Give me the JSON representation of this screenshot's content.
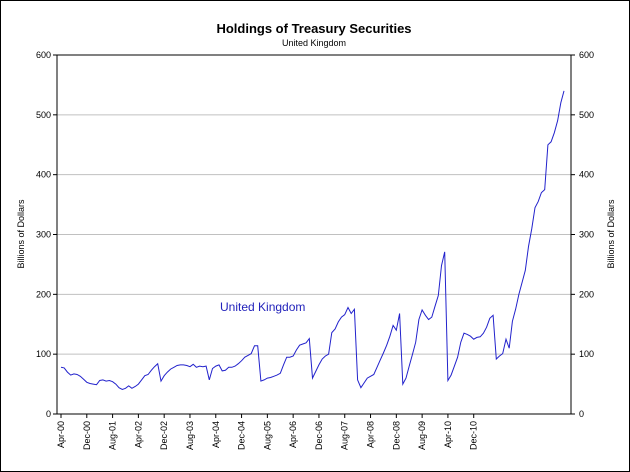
{
  "chart_data": {
    "type": "line",
    "title": "Holdings of Treasury Securities",
    "subtitle": "United Kingdom",
    "ylabel_left": "Billions of Dollars",
    "ylabel_right": "Billions of Dollars",
    "ylim": [
      0,
      600
    ],
    "yticks": [
      0,
      100,
      200,
      300,
      400,
      500,
      600
    ],
    "grid": true,
    "x_tick_labels": [
      "Apr-00",
      "Dec-00",
      "Aug-01",
      "Apr-02",
      "Dec-02",
      "Aug-03",
      "Apr-04",
      "Dec-04",
      "Aug-05",
      "Apr-06",
      "Dec-06",
      "Aug-07",
      "Apr-08",
      "Dec-08",
      "Aug-09",
      "Apr-10",
      "Dec-10"
    ],
    "series": [
      {
        "name": "United Kingdom",
        "color": "#2222cc",
        "start": "2000-04",
        "values": [
          78,
          77,
          70,
          65,
          67,
          66,
          63,
          58,
          53,
          51,
          50,
          49,
          56,
          57,
          55,
          56,
          54,
          50,
          44,
          41,
          43,
          47,
          43,
          46,
          50,
          57,
          64,
          66,
          73,
          79,
          84,
          55,
          64,
          70,
          75,
          78,
          81,
          82,
          82,
          81,
          79,
          83,
          78,
          80,
          79,
          80,
          57,
          76,
          80,
          82,
          72,
          73,
          78,
          78,
          80,
          84,
          89,
          95,
          98,
          101,
          114,
          114,
          55,
          57,
          60,
          61,
          63,
          65,
          68,
          82,
          95,
          95,
          97,
          107,
          115,
          117,
          119,
          126,
          60,
          71,
          82,
          92,
          97,
          100,
          136,
          142,
          154,
          162,
          166,
          178,
          168,
          175,
          57,
          44,
          52,
          60,
          63,
          66,
          78,
          90,
          102,
          115,
          130,
          148,
          140,
          168,
          50,
          60,
          80,
          100,
          120,
          158,
          174,
          165,
          158,
          162,
          180,
          198,
          248,
          271,
          56,
          65,
          80,
          95,
          120,
          135,
          133,
          130,
          125,
          128,
          129,
          135,
          145,
          160,
          165,
          92,
          97,
          101,
          125,
          110,
          155,
          175,
          200,
          220,
          240,
          280,
          310,
          345,
          355,
          370,
          375,
          450,
          455,
          470,
          490,
          520,
          540
        ]
      }
    ],
    "annotation": "United Kingdom"
  }
}
